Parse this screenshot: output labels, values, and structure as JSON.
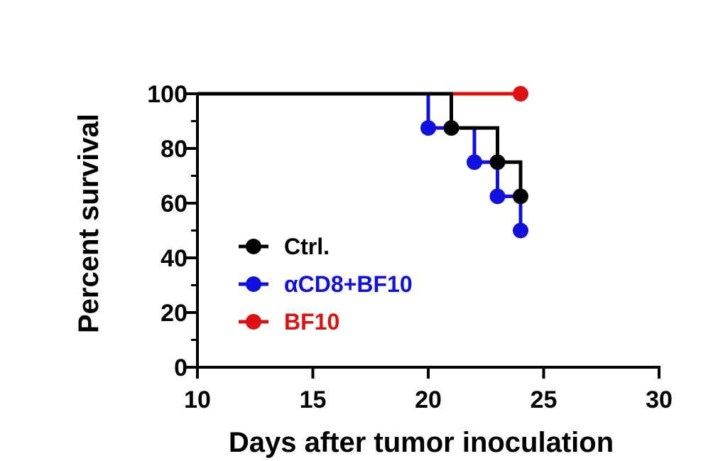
{
  "chart_data": {
    "type": "line",
    "subtype": "kaplan-meier-step",
    "title": "",
    "xlabel": "Days after tumor inoculation",
    "ylabel": "Percent survival",
    "xlim": [
      10,
      30
    ],
    "ylim": [
      0,
      100
    ],
    "x_ticks": [
      10,
      15,
      20,
      25,
      30
    ],
    "y_ticks": [
      0,
      20,
      40,
      60,
      80,
      100
    ],
    "grid": false,
    "legend_position": "center-left",
    "series": [
      {
        "name": "Ctrl.",
        "color": "#000000",
        "x": [
          10,
          21,
          23,
          24
        ],
        "y": [
          100,
          87.5,
          75,
          62.5
        ]
      },
      {
        "name": "αCD8+BF10",
        "color": "#1010e0",
        "x": [
          10,
          20,
          22,
          23,
          24
        ],
        "y": [
          100,
          87.5,
          75,
          62.5,
          50
        ]
      },
      {
        "name": "BF10",
        "color": "#e01010",
        "x": [
          10,
          24
        ],
        "y": [
          100,
          100
        ]
      }
    ]
  }
}
